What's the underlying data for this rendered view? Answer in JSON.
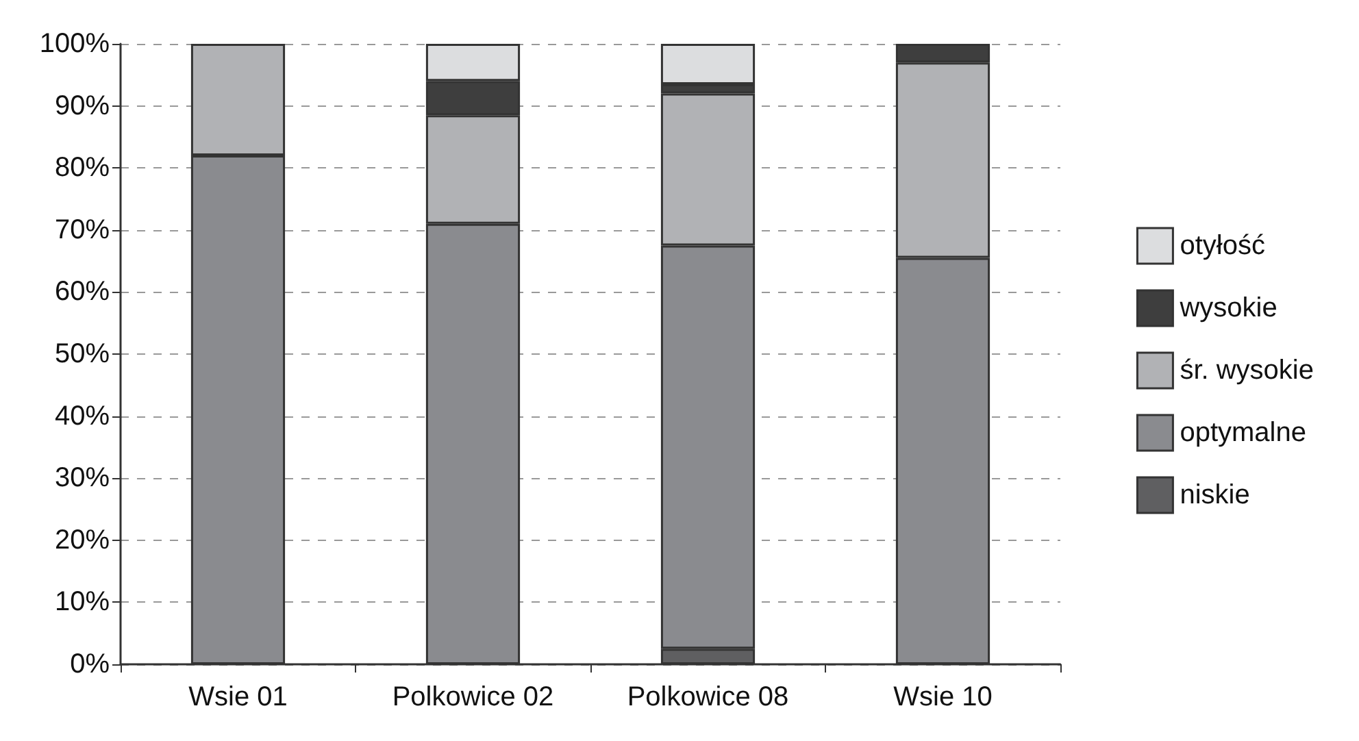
{
  "chart_data": {
    "type": "bar",
    "stacked": true,
    "categories": [
      "Wsie 01",
      "Polkowice 02",
      "Polkowice 08",
      "Wsie 10"
    ],
    "series": [
      {
        "name": "niskie",
        "color": "#5f5f61",
        "values": [
          0,
          0,
          2.5,
          0
        ]
      },
      {
        "name": "optymalne",
        "color": "#8a8b8f",
        "values": [
          82,
          71,
          65,
          65.5
        ]
      },
      {
        "name": "śr. wysokie",
        "color": "#b1b2b5",
        "values": [
          18,
          17.5,
          24.5,
          31.5
        ]
      },
      {
        "name": "wysokie",
        "color": "#3e3e3e",
        "values": [
          0,
          5.5,
          1.5,
          3
        ]
      },
      {
        "name": "otyłość",
        "color": "#dcdddf",
        "values": [
          0,
          6,
          6.5,
          0
        ]
      }
    ],
    "ylim": [
      0,
      100
    ],
    "yticks": [
      {
        "value": 0,
        "label": "0%"
      },
      {
        "value": 10,
        "label": "10%"
      },
      {
        "value": 20,
        "label": "20%"
      },
      {
        "value": 30,
        "label": "30%"
      },
      {
        "value": 40,
        "label": "40%"
      },
      {
        "value": 50,
        "label": "50%"
      },
      {
        "value": 60,
        "label": "60%"
      },
      {
        "value": 70,
        "label": "70%"
      },
      {
        "value": 80,
        "label": "80%"
      },
      {
        "value": 90,
        "label": "90%"
      },
      {
        "value": 100,
        "label": "100%"
      }
    ],
    "grid": "y",
    "legend": "right"
  }
}
